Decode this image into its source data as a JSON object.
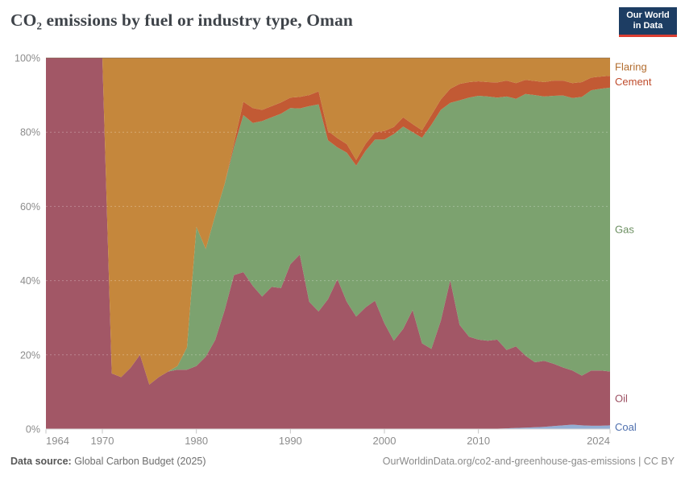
{
  "header": {
    "title": "CO₂ emissions by fuel or industry type, Oman"
  },
  "logo": {
    "line1": "Our World",
    "line2": "in Data",
    "bg_color": "#1d3d63",
    "accent_color": "#dc3e32"
  },
  "footer": {
    "data_source_label": "Data source:",
    "data_source_value": " Global Carbon Budget (2025)",
    "credit": "OurWorldinData.org/co2-and-greenhouse-gas-emissions | CC BY"
  },
  "chart_data": {
    "type": "area",
    "stacked_percent": true,
    "title": "CO₂ emissions by fuel or industry type, Oman",
    "xlabel": "",
    "ylabel": "",
    "x_range": [
      1964,
      2024
    ],
    "ylim": [
      0,
      100
    ],
    "yticks": [
      0,
      20,
      40,
      60,
      80,
      100
    ],
    "ytick_suffix": "%",
    "xticks": [
      1964,
      1970,
      1980,
      1990,
      2000,
      2010,
      2024
    ],
    "grid": "dashed",
    "legend_position": "right-edge-labels",
    "x": [
      1964,
      1965,
      1966,
      1967,
      1968,
      1969,
      1970,
      1971,
      1972,
      1973,
      1974,
      1975,
      1976,
      1977,
      1978,
      1979,
      1980,
      1981,
      1982,
      1983,
      1984,
      1985,
      1986,
      1987,
      1988,
      1989,
      1990,
      1991,
      1992,
      1993,
      1994,
      1995,
      1996,
      1997,
      1998,
      1999,
      2000,
      2001,
      2002,
      2003,
      2004,
      2005,
      2006,
      2007,
      2008,
      2009,
      2010,
      2011,
      2012,
      2013,
      2014,
      2015,
      2016,
      2017,
      2018,
      2019,
      2020,
      2021,
      2022,
      2023,
      2024
    ],
    "series": [
      {
        "name": "Coal",
        "color": "#93aed3",
        "label_color": "#4e6fae",
        "values": [
          0,
          0,
          0,
          0,
          0,
          0,
          0,
          0,
          0,
          0,
          0,
          0,
          0,
          0,
          0,
          0,
          0,
          0,
          0,
          0,
          0,
          0,
          0,
          0,
          0,
          0,
          0,
          0,
          0,
          0,
          0,
          0,
          0,
          0,
          0,
          0,
          0,
          0,
          0,
          0,
          0,
          0,
          0,
          0,
          0,
          0,
          0,
          0.1,
          0.1,
          0.2,
          0.3,
          0.4,
          0.5,
          0.6,
          0.8,
          1.0,
          1.2,
          1.0,
          0.9,
          0.9,
          1.0
        ]
      },
      {
        "name": "Oil",
        "color": "#a25766",
        "label_color": "#9c4f61",
        "values": [
          100,
          100,
          100,
          100,
          100,
          100,
          100,
          15,
          14,
          16.5,
          20,
          12,
          14,
          15.5,
          16,
          16,
          17,
          19.5,
          24,
          32,
          41.5,
          42.3,
          38.6,
          35.7,
          38.3,
          38,
          44.4,
          47,
          34.3,
          31.7,
          35,
          40.4,
          34.3,
          30.3,
          32.8,
          34.6,
          28.5,
          23.8,
          27,
          32.1,
          23.1,
          21.6,
          29.2,
          40.1,
          28.1,
          24.9,
          24.1,
          23.7,
          24,
          21.1,
          22,
          19.4,
          17.5,
          17.8,
          16.8,
          15.6,
          14.6,
          13.4,
          14.9,
          14.9,
          14.5
        ]
      },
      {
        "name": "Gas",
        "color": "#7ca26f",
        "label_color": "#6c8f61",
        "values": [
          0,
          0,
          0,
          0,
          0,
          0,
          0,
          0,
          0,
          0,
          0,
          0,
          0,
          0,
          1,
          6,
          37.5,
          29,
          33.5,
          34,
          34.5,
          42.3,
          43.9,
          47.3,
          45.7,
          47,
          42.1,
          39.4,
          52.7,
          55.8,
          42.8,
          35.5,
          40.2,
          40.7,
          42.2,
          43.4,
          49.5,
          55.7,
          54.5,
          47.9,
          55.4,
          60.4,
          56.8,
          47.8,
          60.5,
          64.4,
          65.7,
          65.8,
          65.2,
          68.3,
          66.7,
          70.5,
          72,
          71.2,
          72.2,
          73.3,
          73.4,
          75.1,
          75.5,
          75.9,
          76.5
        ]
      },
      {
        "name": "Cement",
        "color": "#c25a34",
        "label_color": "#bf4b2b",
        "values": [
          0,
          0,
          0,
          0,
          0,
          0,
          0,
          0,
          0,
          0,
          0,
          0,
          0,
          0,
          0,
          0,
          0,
          0,
          0,
          0,
          1,
          3.6,
          4,
          3,
          3,
          3,
          2.8,
          3.1,
          3,
          3.5,
          2.5,
          2.5,
          2.3,
          1.5,
          1.9,
          2,
          2.3,
          1.9,
          2.5,
          2.2,
          2,
          2.6,
          2.8,
          3.8,
          4.4,
          4.2,
          3.9,
          3.9,
          4.1,
          4.3,
          4.2,
          3.8,
          3.8,
          3.9,
          4.1,
          4,
          4,
          4,
          3.4,
          3.3,
          3.2
        ]
      },
      {
        "name": "Flaring",
        "color": "#c5873c",
        "label_color": "#b26c2d",
        "values": [
          0,
          0,
          0,
          0,
          0,
          0,
          0,
          85,
          86,
          83.5,
          80,
          88,
          86,
          84.5,
          83,
          78,
          45.5,
          51.5,
          42.5,
          34,
          23,
          11.8,
          13.5,
          14,
          13,
          12,
          10.7,
          10.5,
          10,
          9,
          19.7,
          21.6,
          23.2,
          27.5,
          23.1,
          20,
          19.7,
          18.6,
          16,
          17.8,
          19.5,
          15.4,
          11.2,
          8.3,
          7,
          6.5,
          6.3,
          6.5,
          6.6,
          6.1,
          6.8,
          5.9,
          6.2,
          6.5,
          6.1,
          6.1,
          6.8,
          6.5,
          5.3,
          5,
          4.8
        ]
      }
    ],
    "axis_text_color": "#8c8c8c",
    "tick_mark_color": "#c4c4c4"
  }
}
